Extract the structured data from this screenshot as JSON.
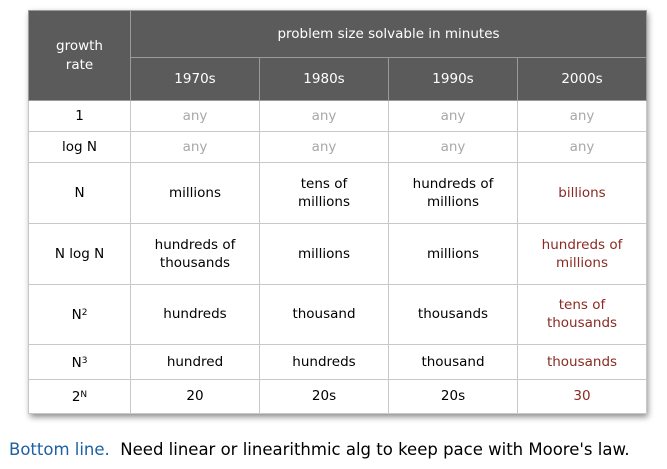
{
  "table": {
    "row_header_label": "growth rate",
    "group_header": "problem size solvable in minutes",
    "decades": [
      "1970s",
      "1980s",
      "1990s",
      "2000s"
    ],
    "rows": [
      {
        "base": "1",
        "exp": "",
        "cells": [
          "any",
          "any",
          "any",
          "any"
        ]
      },
      {
        "base": "log N",
        "exp": "",
        "cells": [
          "any",
          "any",
          "any",
          "any"
        ]
      },
      {
        "base": "N",
        "exp": "",
        "cells": [
          "millions",
          "tens of millions",
          "hundreds of millions",
          "billions"
        ]
      },
      {
        "base": "N log N",
        "exp": "",
        "cells": [
          "hundreds of thousands",
          "millions",
          "millions",
          "hundreds of millions"
        ]
      },
      {
        "base": "N",
        "exp": "2",
        "cells": [
          "hundreds",
          "thousand",
          "thousands",
          "tens of thousands"
        ]
      },
      {
        "base": "N",
        "exp": "3",
        "cells": [
          "hundred",
          "hundreds",
          "thousand",
          "thousands"
        ]
      },
      {
        "base": "2",
        "exp": "N",
        "cells": [
          "20",
          "20s",
          "20s",
          "30"
        ]
      }
    ]
  },
  "footer": {
    "lead": "Bottom line.",
    "text": "Need linear or linearithmic alg to keep pace with Moore's law."
  },
  "colors": {
    "header_bg": "#5b5b5b",
    "muted_text": "#a8a8a8",
    "highlight_text": "#8a2a22",
    "footer_lead": "#1f5fa3"
  }
}
